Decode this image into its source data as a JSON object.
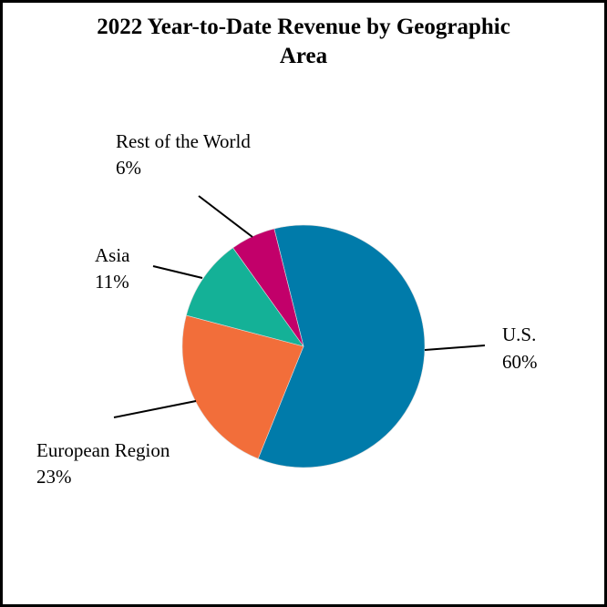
{
  "chart_data": {
    "type": "pie",
    "title": "2022 Year-to-Date Revenue by Geographic Area",
    "title_lines": [
      "2022 Year-to-Date Revenue by Geographic",
      "Area"
    ],
    "categories": [
      "U.S.",
      "European Region",
      "Asia",
      "Rest of the World"
    ],
    "values": [
      60,
      23,
      11,
      6
    ],
    "value_labels": [
      "60%",
      "23%",
      "11%",
      "6%"
    ],
    "colors": [
      "#007BAA",
      "#F26E3A",
      "#14B197",
      "#C2006A"
    ],
    "start_angle_deg": -14,
    "direction": "clockwise",
    "legend": "none (leader-line labels)"
  }
}
